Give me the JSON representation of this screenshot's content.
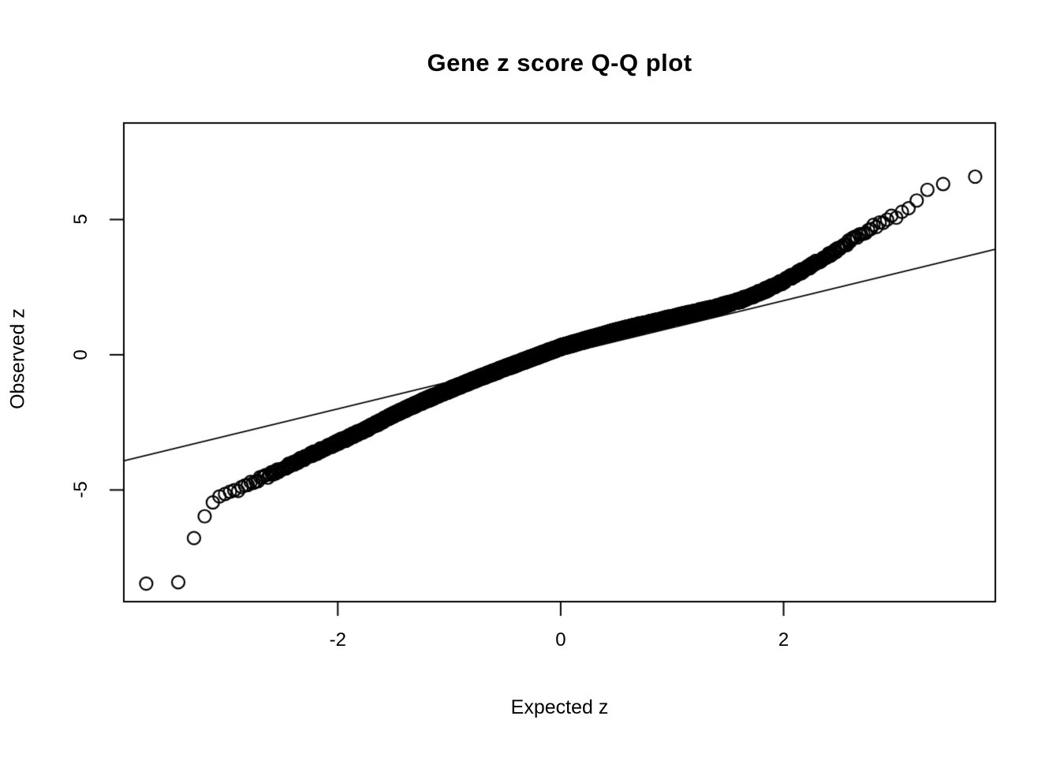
{
  "chart_data": {
    "type": "scatter",
    "subtype": "qq-plot",
    "title": "Gene z score Q-Q plot",
    "xlabel": "Expected z",
    "ylabel": "Observed z",
    "x_ticks": [
      -2,
      0,
      2
    ],
    "y_ticks": [
      -5,
      0,
      5
    ],
    "xlim": [
      -3.92,
      3.9
    ],
    "ylim": [
      -9.13,
      8.57
    ],
    "grid": false,
    "legend_position": "none",
    "marker": "open-circle",
    "marker_radius_px": 8,
    "marker_stroke_px": 2.2,
    "colors": {
      "points": "#000000",
      "reference_line": "#000000",
      "axis": "#000000",
      "background": "#ffffff",
      "text": "#000000"
    },
    "reference_line": {
      "slope": 1,
      "intercept": 0
    },
    "n_points": 5000,
    "jitter_amplitude": 0.08,
    "observed_vs_expected_landmarks": [
      [
        -3.72,
        -8.5
      ],
      [
        -3.44,
        -8.44
      ],
      [
        -3.42,
        -8.4
      ],
      [
        -3.3,
        -6.8
      ],
      [
        -3.23,
        -6.6
      ],
      [
        -3.19,
        -5.85
      ],
      [
        -3.13,
        -5.55
      ],
      [
        -3.07,
        -5.3
      ],
      [
        -3.0,
        -5.12
      ],
      [
        -2.9,
        -4.97
      ],
      [
        -2.75,
        -4.7
      ],
      [
        -2.6,
        -4.42
      ],
      [
        -2.4,
        -4.02
      ],
      [
        -2.2,
        -3.62
      ],
      [
        -2.0,
        -3.24
      ],
      [
        -1.75,
        -2.76
      ],
      [
        -1.5,
        -2.22
      ],
      [
        -1.25,
        -1.74
      ],
      [
        -1.0,
        -1.3
      ],
      [
        -0.75,
        -0.88
      ],
      [
        -0.5,
        -0.49
      ],
      [
        -0.25,
        -0.1
      ],
      [
        0.0,
        0.28
      ],
      [
        0.25,
        0.58
      ],
      [
        0.5,
        0.87
      ],
      [
        0.75,
        1.12
      ],
      [
        1.0,
        1.37
      ],
      [
        1.2,
        1.56
      ],
      [
        1.4,
        1.75
      ],
      [
        1.6,
        2.0
      ],
      [
        1.8,
        2.32
      ],
      [
        2.0,
        2.72
      ],
      [
        2.2,
        3.18
      ],
      [
        2.4,
        3.68
      ],
      [
        2.6,
        4.2
      ],
      [
        2.75,
        4.6
      ],
      [
        2.9,
        4.95
      ],
      [
        3.0,
        5.12
      ],
      [
        3.1,
        5.32
      ],
      [
        3.18,
        5.58
      ],
      [
        3.25,
        5.95
      ],
      [
        3.32,
        6.1
      ],
      [
        3.45,
        6.3
      ],
      [
        3.72,
        6.55
      ]
    ]
  }
}
